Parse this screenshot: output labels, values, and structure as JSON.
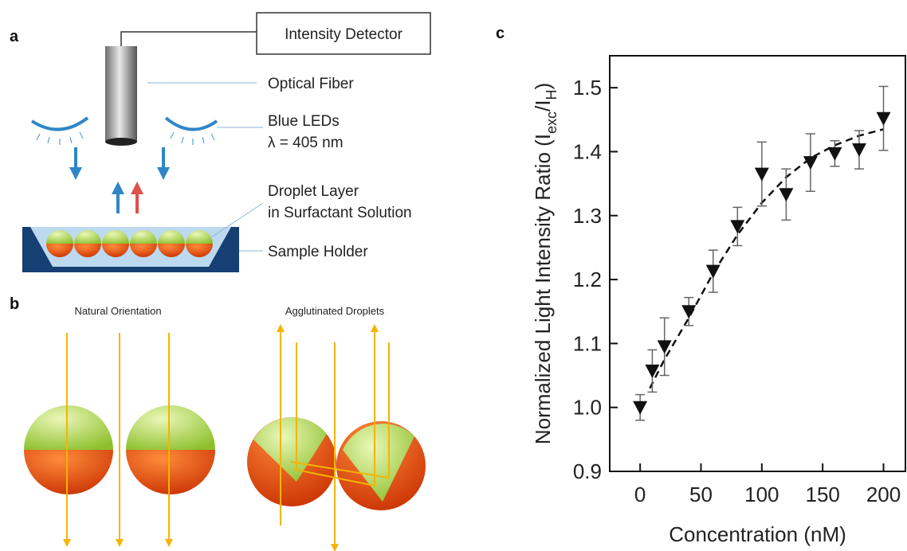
{
  "panel_a": {
    "label": "a",
    "detector": "Intensity Detector",
    "fiber": "Optical Fiber",
    "leds": "Blue LEDs",
    "wavelength": "λ = 405 nm",
    "droplet_layer": "Droplet Layer",
    "solution": "in Surfactant Solution",
    "holder": "Sample Holder"
  },
  "panel_b": {
    "label": "b",
    "natural": "Natural Orientation",
    "agglutinated": "Agglutinated Droplets"
  },
  "chart_data": {
    "type": "scatter",
    "panel_label": "c",
    "xlabel": "Concentration (nM)",
    "ylabel": [
      "Normalized Light Intensity Ratio (I",
      "exc",
      "/I",
      "H",
      ")"
    ],
    "x": [
      0,
      10,
      20,
      40,
      60,
      80,
      100,
      120,
      140,
      160,
      180,
      200
    ],
    "values": [
      1.0,
      1.057,
      1.095,
      1.15,
      1.213,
      1.283,
      1.365,
      1.333,
      1.383,
      1.397,
      1.403,
      1.452
    ],
    "errors": [
      0.02,
      0.033,
      0.045,
      0.022,
      0.033,
      0.03,
      0.05,
      0.04,
      0.045,
      0.02,
      0.03,
      0.05
    ],
    "color": "#111111",
    "fit": {
      "x": [
        8,
        20,
        40,
        60,
        80,
        100,
        120,
        140,
        160,
        180,
        200
      ],
      "y": [
        1.03,
        1.075,
        1.14,
        1.21,
        1.27,
        1.32,
        1.36,
        1.39,
        1.41,
        1.425,
        1.435
      ]
    },
    "xlim": [
      -25,
      218
    ],
    "ylim": [
      0.9,
      1.55
    ],
    "xticks": [
      0,
      50,
      100,
      150,
      200
    ],
    "yticks": [
      0.9,
      {
        "value": 1.0,
        "label": "1.0"
      },
      1.1,
      1.2,
      1.3,
      1.4,
      1.5
    ]
  }
}
